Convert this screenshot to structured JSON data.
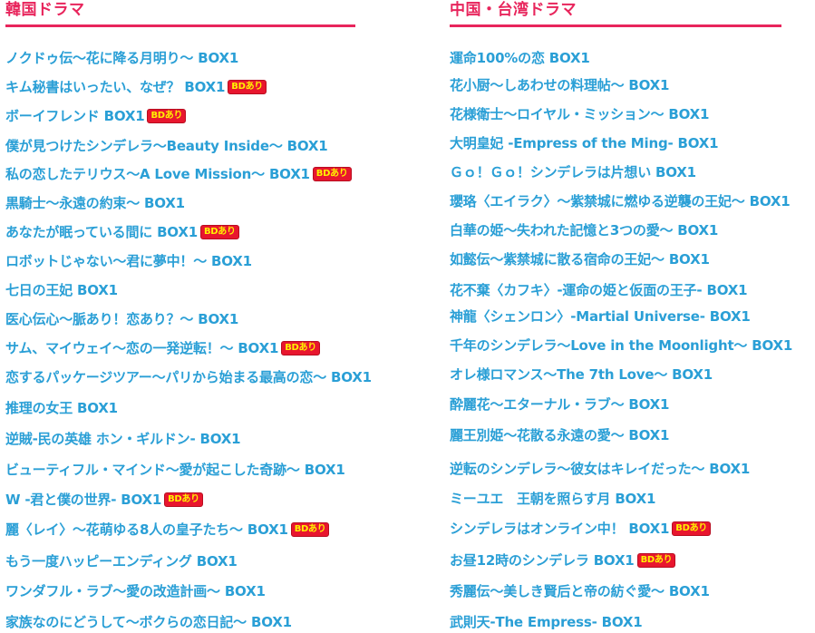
{
  "sections": [
    {
      "heading": "韓国ドラマ",
      "items": [
        {
          "title": "ノクドゥ伝〜花に降る月明り〜 BOX1",
          "badge": ""
        },
        {
          "title": "キム秘書はいったい、なぜ？ BOX1",
          "badge": "BDあり"
        },
        {
          "title": "ボーイフレンド BOX1",
          "badge": "BDあり"
        },
        {
          "title": "僕が見つけたシンデレラ〜Beauty Inside〜 BOX1",
          "badge": ""
        },
        {
          "title": "私の恋したテリウス〜A Love Mission〜 BOX1",
          "badge": "BDあり"
        },
        {
          "title": "黒騎士〜永遠の約束〜 BOX1",
          "badge": ""
        },
        {
          "title": "あなたが眠っている間に BOX1",
          "badge": "BDあり"
        },
        {
          "title": "ロボットじゃない〜君に夢中！〜 BOX1",
          "badge": ""
        },
        {
          "title": "七日の王妃 BOX1",
          "badge": ""
        },
        {
          "title": "医心伝心〜脈あり！恋あり？〜 BOX1",
          "badge": ""
        },
        {
          "title": "サム、マイウェイ〜恋の一発逆転！〜 BOX1",
          "badge": "BDあり"
        },
        {
          "title": "恋するパッケージツアー〜パリから始まる最高の恋〜 BOX1",
          "badge": ""
        },
        {
          "title": "推理の女王 BOX1",
          "badge": ""
        },
        {
          "title": "逆賊-民の英雄 ホン・ギルドン- BOX1",
          "badge": ""
        },
        {
          "title": "ビューティフル・マインド〜愛が起こした奇跡〜 BOX1",
          "badge": ""
        },
        {
          "title": "W -君と僕の世界- BOX1",
          "badge": "BDあり"
        },
        {
          "title": "麗〈レイ〉〜花萌ゆる8人の皇子たち〜 BOX1",
          "badge": "BDあり"
        },
        {
          "title": "もう一度ハッピーエンディング BOX1",
          "badge": ""
        },
        {
          "title": "ワンダフル・ラブ〜愛の改造計画〜 BOX1",
          "badge": ""
        },
        {
          "title": "家族なのにどうして〜ボクらの恋日記〜 BOX1",
          "badge": ""
        }
      ]
    },
    {
      "heading": "中国・台湾ドラマ",
      "items": [
        {
          "title": "運命100%の恋 BOX1",
          "badge": ""
        },
        {
          "title": "花小厨〜しあわせの料理帖〜 BOX1",
          "badge": ""
        },
        {
          "title": "花様衛士〜ロイヤル・ミッション〜 BOX1",
          "badge": ""
        },
        {
          "title": "大明皇妃 -Empress of the Ming- BOX1",
          "badge": ""
        },
        {
          "title": "Ｇｏ！Ｇｏ！シンデレラは片想い BOX1",
          "badge": ""
        },
        {
          "title": "瓔珞〈エイラク〉〜紫禁城に燃ゆる逆襲の王妃〜 BOX1",
          "badge": ""
        },
        {
          "title": "白華の姫〜失われた記憶と3つの愛〜 BOX1",
          "badge": ""
        },
        {
          "title": "如懿伝〜紫禁城に散る宿命の王妃〜 BOX1",
          "badge": ""
        },
        {
          "title": "花不棄〈カフキ〉-運命の姫と仮面の王子- BOX1",
          "badge": ""
        },
        {
          "title": "神龍〈シェンロン〉-Martial Universe- BOX1",
          "badge": ""
        },
        {
          "title": "千年のシンデレラ〜Love in the Moonlight〜 BOX1",
          "badge": ""
        },
        {
          "title": "オレ様ロマンス〜The 7th Love〜 BOX1",
          "badge": ""
        },
        {
          "title": "酔麗花〜エターナル・ラブ〜 BOX1",
          "badge": ""
        },
        {
          "title": "麗王別姫〜花散る永遠の愛〜 BOX1",
          "badge": ""
        },
        {
          "title": "逆転のシンデレラ〜彼女はキレイだった〜 BOX1",
          "badge": ""
        },
        {
          "title": "ミーユエ　王朝を照らす月 BOX1",
          "badge": ""
        },
        {
          "title": "シンデレラはオンライン中！ BOX1",
          "badge": "BDあり"
        },
        {
          "title": "お昼12時のシンデレラ BOX1",
          "badge": "BDあり"
        },
        {
          "title": "秀麗伝〜美しき賢后と帝の紡ぐ愛〜 BOX1",
          "badge": ""
        },
        {
          "title": "武則天-The Empress- BOX1",
          "badge": ""
        }
      ]
    }
  ]
}
